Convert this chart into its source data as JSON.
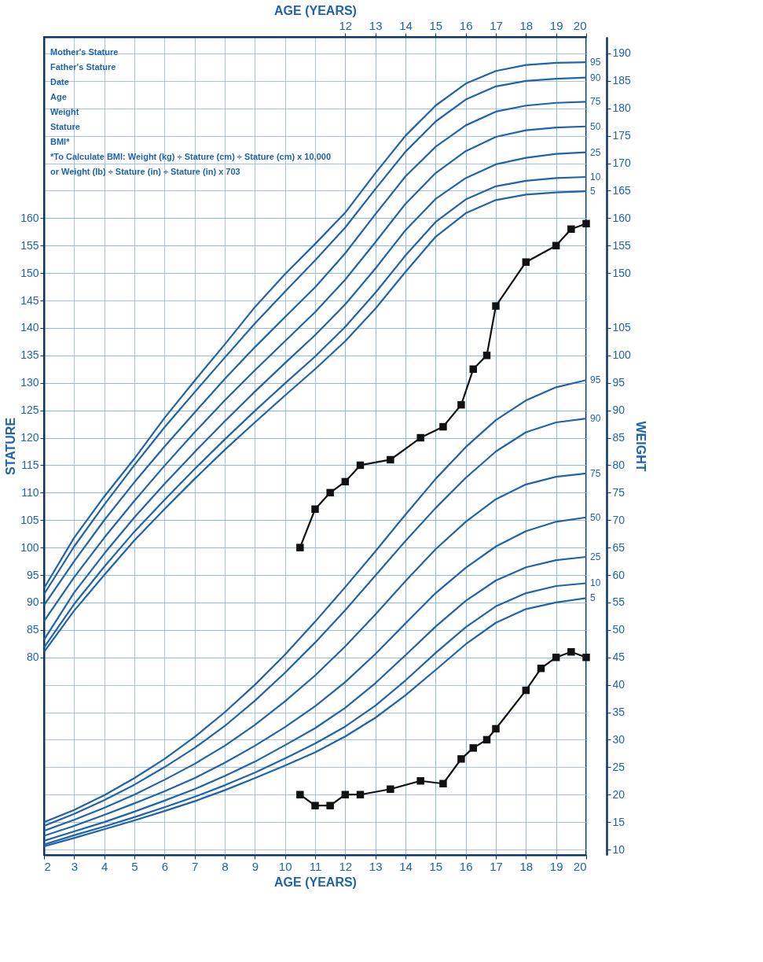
{
  "chart_data": {
    "type": "line",
    "xlabel": "AGE (YEARS)",
    "x2label": "AGE (YEARS)",
    "ylabel": "STATURE",
    "y2label": "WEIGHT",
    "xlim": [
      2,
      20
    ],
    "xticks": [
      2,
      3,
      4,
      5,
      6,
      7,
      8,
      9,
      10,
      11,
      12,
      13,
      14,
      15,
      16,
      17,
      18,
      19,
      20
    ],
    "x2lim": [
      2,
      20
    ],
    "x2ticks": [
      12,
      13,
      14,
      15,
      16,
      17,
      18,
      19,
      20
    ],
    "ylim": [
      44,
      193
    ],
    "yticks": [
      80,
      85,
      90,
      95,
      100,
      105,
      110,
      115,
      120,
      125,
      130,
      135,
      140,
      145,
      150,
      155,
      160
    ],
    "y3lim": [
      44,
      193
    ],
    "y3ticks": [
      150,
      155,
      160,
      165,
      170,
      175,
      180,
      185,
      190
    ],
    "y2lim": [
      9,
      158
    ],
    "y2ticks": [
      10,
      15,
      20,
      25,
      30,
      35,
      40,
      45,
      50,
      55,
      60,
      65,
      70,
      75,
      80,
      85,
      90,
      95,
      100,
      105
    ],
    "grid": true,
    "marker": "none",
    "line_style": "solid",
    "x": [
      2,
      3,
      4,
      5,
      6,
      7,
      8,
      9,
      10,
      11,
      12,
      13,
      14,
      15,
      16,
      17,
      18,
      19,
      20
    ],
    "series": [
      {
        "name": "95",
        "color": "#1f63ad",
        "values": [
          92.6,
          101.8,
          109.3,
          116.2,
          123.6,
          130.4,
          137.0,
          143.8,
          149.8,
          155.3,
          161.0,
          168.2,
          175.0,
          180.5,
          184.5,
          186.8,
          187.9,
          188.3,
          188.4
        ]
      },
      {
        "name": "90",
        "color": "#1f63ad",
        "values": [
          91.5,
          100.2,
          107.8,
          115.0,
          121.9,
          128.3,
          134.6,
          140.8,
          146.6,
          152.3,
          158.3,
          165.3,
          172.1,
          177.6,
          181.6,
          184.0,
          185.0,
          185.4,
          185.6
        ]
      },
      {
        "name": "75",
        "color": "#1f63ad",
        "values": [
          89.5,
          97.5,
          105.0,
          111.9,
          118.4,
          124.6,
          130.7,
          136.5,
          142.0,
          147.4,
          153.6,
          160.7,
          167.6,
          173.0,
          176.9,
          179.4,
          180.5,
          181.0,
          181.2
        ]
      },
      {
        "name": "50",
        "color": "#1f63ad",
        "values": [
          86.6,
          94.6,
          101.8,
          108.5,
          114.9,
          121.0,
          126.8,
          132.3,
          137.6,
          142.9,
          148.8,
          155.6,
          162.6,
          168.2,
          172.2,
          174.8,
          176.0,
          176.5,
          176.7
        ]
      },
      {
        "name": "25",
        "color": "#1f63ad",
        "values": [
          83.2,
          91.8,
          98.9,
          105.5,
          111.6,
          117.4,
          123.0,
          128.4,
          133.6,
          138.7,
          144.3,
          150.8,
          157.8,
          163.5,
          167.3,
          169.8,
          171.0,
          171.7,
          172.0
        ]
      },
      {
        "name": "10",
        "color": "#1f63ad",
        "values": [
          81.8,
          89.7,
          96.5,
          102.9,
          108.7,
          114.3,
          119.7,
          124.9,
          129.9,
          134.8,
          140.2,
          146.4,
          153.2,
          159.3,
          163.4,
          165.8,
          166.8,
          167.3,
          167.5
        ]
      },
      {
        "name": "5",
        "color": "#1f63ad",
        "values": [
          81.0,
          88.5,
          95.0,
          101.3,
          107.0,
          112.5,
          117.8,
          122.8,
          127.7,
          132.5,
          137.6,
          143.5,
          150.2,
          156.6,
          160.9,
          163.3,
          164.3,
          164.7,
          164.9
        ]
      },
      {
        "color": "#111111",
        "marker": "square",
        "x": [
          10.5,
          11,
          11.5,
          12,
          12.5,
          13.5,
          14.5,
          15.25,
          15.85,
          16.25,
          16.7,
          17,
          18,
          19,
          19.5,
          20
        ],
        "values": [
          100,
          107,
          110,
          112,
          115,
          116,
          120,
          122,
          126,
          132.5,
          135,
          144,
          152,
          155,
          158,
          159
        ]
      },
      {
        "name": "95",
        "color": "#1f63ad",
        "axis": "y2",
        "values": [
          15.0,
          17.2,
          19.9,
          23.0,
          26.5,
          30.5,
          35.0,
          40.0,
          45.5,
          51.5,
          57.8,
          64.3,
          71.0,
          77.5,
          83.3,
          88.2,
          91.8,
          94.2,
          95.5
        ]
      },
      {
        "name": "90",
        "color": "#1f63ad",
        "axis": "y2",
        "values": [
          14.3,
          16.5,
          19.0,
          21.8,
          25.0,
          28.5,
          32.5,
          37.1,
          42.2,
          47.7,
          53.6,
          59.9,
          66.2,
          72.2,
          77.7,
          82.5,
          86.0,
          87.8,
          88.5
        ]
      },
      {
        "name": "75",
        "color": "#1f63ad",
        "axis": "y2",
        "values": [
          13.4,
          15.4,
          17.6,
          20.0,
          22.7,
          25.6,
          28.9,
          32.7,
          37.0,
          41.7,
          47.0,
          52.8,
          58.9,
          64.7,
          69.7,
          73.8,
          76.5,
          77.9,
          78.5
        ]
      },
      {
        "name": "50",
        "color": "#1f63ad",
        "axis": "y2",
        "values": [
          12.5,
          14.3,
          16.3,
          18.4,
          20.6,
          23.0,
          25.8,
          28.9,
          32.3,
          36.1,
          40.5,
          45.6,
          51.2,
          56.7,
          61.3,
          65.2,
          68.0,
          69.7,
          70.5
        ]
      },
      {
        "name": "25",
        "color": "#1f63ad",
        "axis": "y2",
        "values": [
          11.6,
          13.3,
          15.0,
          16.9,
          18.9,
          21.0,
          23.4,
          26.0,
          29.0,
          32.1,
          35.8,
          40.3,
          45.4,
          50.6,
          55.3,
          59.0,
          61.4,
          62.7,
          63.3
        ]
      },
      {
        "name": "10",
        "color": "#1f63ad",
        "axis": "y2",
        "values": [
          10.9,
          12.6,
          14.2,
          15.9,
          17.7,
          19.6,
          21.7,
          24.0,
          26.6,
          29.3,
          32.4,
          36.2,
          40.8,
          45.8,
          50.5,
          54.3,
          56.7,
          58.0,
          58.5
        ]
      },
      {
        "name": "5",
        "color": "#1f63ad",
        "axis": "y2",
        "values": [
          10.6,
          12.1,
          13.7,
          15.3,
          17.0,
          18.8,
          20.8,
          23.0,
          25.3,
          27.7,
          30.6,
          34.0,
          38.1,
          42.7,
          47.4,
          51.3,
          53.8,
          55.0,
          55.8
        ]
      },
      {
        "color": "#111111",
        "marker": "square",
        "axis": "y2",
        "x": [
          10.5,
          11,
          11.5,
          12,
          12.5,
          13.5,
          14.5,
          15.25,
          15.85,
          16.25,
          16.7,
          17,
          18,
          18.5,
          19,
          19.5,
          20
        ],
        "values": [
          20,
          18,
          18,
          20,
          20,
          21,
          22.5,
          22,
          26.5,
          28.5,
          30,
          32,
          39,
          43,
          45,
          46,
          45
        ]
      }
    ],
    "annotations": [
      "Mother's Stature",
      "Father's Stature",
      "Date",
      "Age",
      "Weight",
      "Stature",
      "BMI*",
      "*To Calculate BMI: Weight (kg) ÷ Stature (cm) ÷ Stature (cm) x 10,000",
      "or Weight (lb) ÷ Stature (in) ÷ Stature (in) x 703"
    ]
  }
}
